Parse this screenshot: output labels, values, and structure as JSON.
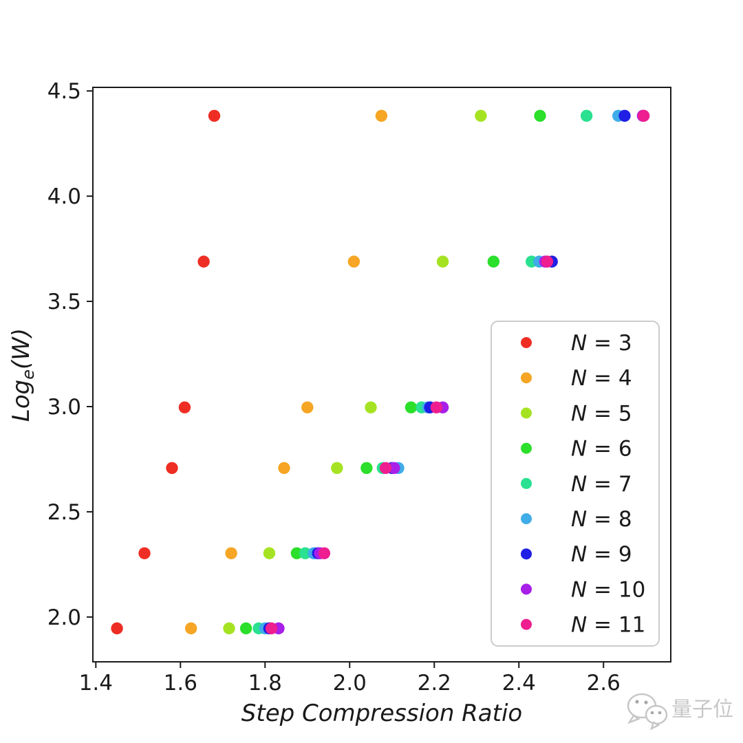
{
  "figure": {
    "background": "#ffffff",
    "axis_color": "#1a1a1a",
    "watermark": {
      "text": "量子位",
      "color": "#c7c7c7",
      "icon": "wechat-chat-bubbles-icon"
    }
  },
  "chart_data": {
    "type": "scatter",
    "title": "",
    "xlabel": "Step Compression Ratio",
    "ylabel": "Log_e(W)",
    "ylabel_parts": {
      "prefix": "Log",
      "subscript": "e",
      "suffix": "(W)"
    },
    "xlim": [
      1.393,
      2.759
    ],
    "ylim": [
      1.787,
      4.517
    ],
    "xticks": [
      "1.4",
      "1.6",
      "1.8",
      "2.0",
      "2.2",
      "2.4",
      "2.6"
    ],
    "yticks": [
      "2.0",
      "2.5",
      "3.0",
      "3.5",
      "4.0",
      "4.5"
    ],
    "grid": false,
    "legend_position": "inside-middle-right",
    "series": [
      {
        "name": "N = 3",
        "color": "#ee2e24",
        "points": [
          [
            1.68,
            4.382
          ],
          [
            1.655,
            3.689
          ],
          [
            1.61,
            2.996
          ],
          [
            1.58,
            2.708
          ],
          [
            1.515,
            2.303
          ],
          [
            1.45,
            1.946
          ]
        ]
      },
      {
        "name": "N = 4",
        "color": "#f6a524",
        "points": [
          [
            2.075,
            4.382
          ],
          [
            2.01,
            3.689
          ],
          [
            1.9,
            2.996
          ],
          [
            1.845,
            2.708
          ],
          [
            1.72,
            2.303
          ],
          [
            1.625,
            1.946
          ]
        ]
      },
      {
        "name": "N = 5",
        "color": "#a5e322",
        "points": [
          [
            2.31,
            4.382
          ],
          [
            2.22,
            3.689
          ],
          [
            2.05,
            2.996
          ],
          [
            1.97,
            2.708
          ],
          [
            1.81,
            2.303
          ],
          [
            1.715,
            1.946
          ]
        ]
      },
      {
        "name": "N = 6",
        "color": "#2bdf2a",
        "points": [
          [
            2.45,
            4.382
          ],
          [
            2.34,
            3.689
          ],
          [
            2.145,
            2.996
          ],
          [
            2.04,
            2.708
          ],
          [
            1.875,
            2.303
          ],
          [
            1.755,
            1.946
          ]
        ]
      },
      {
        "name": "N = 7",
        "color": "#29e190",
        "points": [
          [
            2.56,
            4.382
          ],
          [
            2.43,
            3.689
          ],
          [
            2.17,
            2.996
          ],
          [
            2.078,
            2.708
          ],
          [
            1.895,
            2.303
          ],
          [
            1.785,
            1.946
          ]
        ]
      },
      {
        "name": "N = 8",
        "color": "#40ace8",
        "points": [
          [
            2.635,
            4.382
          ],
          [
            2.448,
            3.689
          ],
          [
            2.185,
            2.996
          ],
          [
            2.115,
            2.708
          ],
          [
            1.915,
            2.303
          ],
          [
            1.8,
            1.946
          ]
        ]
      },
      {
        "name": "N = 9",
        "color": "#1f1fe5",
        "points": [
          [
            2.65,
            4.382
          ],
          [
            2.478,
            3.689
          ],
          [
            2.19,
            2.996
          ],
          [
            2.1,
            2.708
          ],
          [
            1.925,
            2.303
          ],
          [
            1.81,
            1.946
          ]
        ]
      },
      {
        "name": "N = 10",
        "color": "#a81fe9",
        "points": [
          [
            2.693,
            4.382
          ],
          [
            2.462,
            3.689
          ],
          [
            2.22,
            2.996
          ],
          [
            2.105,
            2.708
          ],
          [
            1.93,
            2.303
          ],
          [
            1.832,
            1.946
          ]
        ]
      },
      {
        "name": "N = 11",
        "color": "#ee1e90",
        "points": [
          [
            2.695,
            4.382
          ],
          [
            2.467,
            3.689
          ],
          [
            2.205,
            2.996
          ],
          [
            2.085,
            2.708
          ],
          [
            1.94,
            2.303
          ],
          [
            1.815,
            1.946
          ]
        ]
      }
    ]
  }
}
